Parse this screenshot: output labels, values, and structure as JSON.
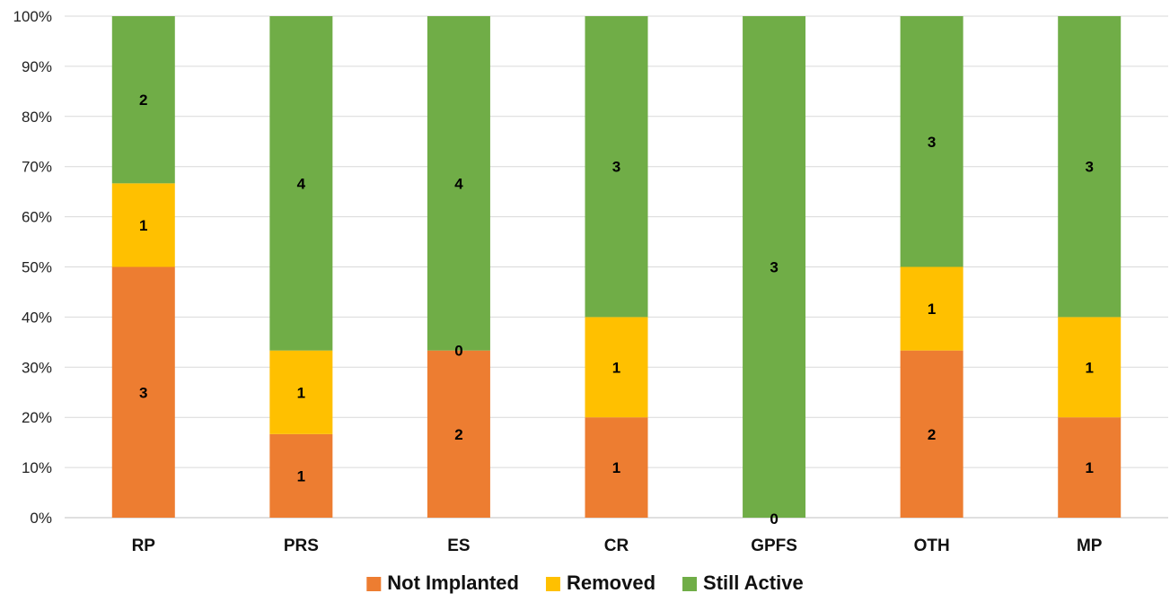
{
  "chart_data": {
    "type": "bar",
    "stacked": true,
    "normalized": true,
    "title": "",
    "xlabel": "",
    "ylabel": "",
    "ylim": [
      0,
      100
    ],
    "y_ticks": [
      "0%",
      "10%",
      "20%",
      "30%",
      "40%",
      "50%",
      "60%",
      "70%",
      "80%",
      "90%",
      "100%"
    ],
    "grid": true,
    "legend_position": "bottom",
    "categories": [
      "RP",
      "PRS",
      "ES",
      "CR",
      "GPFS",
      "OTH",
      "MP"
    ],
    "series": [
      {
        "name": "Not Implanted",
        "color": "#ED7D31",
        "values": [
          3,
          1,
          2,
          1,
          0,
          2,
          1
        ]
      },
      {
        "name": "Removed",
        "color": "#FFC000",
        "values": [
          1,
          1,
          0,
          1,
          0,
          1,
          1
        ]
      },
      {
        "name": "Still Active",
        "color": "#70AD47",
        "values": [
          2,
          4,
          4,
          3,
          3,
          3,
          3
        ]
      }
    ],
    "data_labels": [
      [
        "3",
        "1",
        "2",
        "1",
        "0",
        "2",
        "1"
      ],
      [
        "1",
        "1",
        "0",
        "1",
        "",
        "1",
        "1"
      ],
      [
        "2",
        "4",
        "4",
        "3",
        "3",
        "3",
        "3"
      ]
    ]
  }
}
